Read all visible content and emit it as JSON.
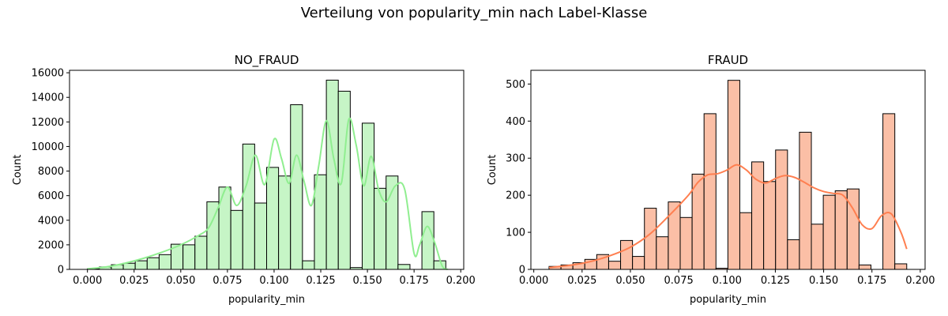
{
  "figure": {
    "suptitle": "Verteilung von popularity_min nach Label-Klasse"
  },
  "chart_data": [
    {
      "type": "bar",
      "title": "NO_FRAUD",
      "xlabel": "popularity_min",
      "ylabel": "Count",
      "xlim": [
        -0.0096,
        0.2016
      ],
      "ylim": [
        0,
        16200
      ],
      "xticks": [
        0.0,
        0.025,
        0.05,
        0.075,
        0.1,
        0.125,
        0.15,
        0.175,
        0.2
      ],
      "xtick_labels": [
        "0.000",
        "0.025",
        "0.050",
        "0.075",
        "0.100",
        "0.125",
        "0.150",
        "0.175",
        "0.200"
      ],
      "yticks": [
        0,
        2000,
        4000,
        6000,
        8000,
        10000,
        12000,
        14000,
        16000
      ],
      "ytick_labels": [
        "0",
        "2000",
        "4000",
        "6000",
        "8000",
        "10000",
        "12000",
        "14000",
        "16000"
      ],
      "bin_start": 0.0,
      "bin_width": 0.0064,
      "values": [
        50,
        200,
        380,
        500,
        700,
        950,
        1200,
        2050,
        2000,
        2700,
        5500,
        6700,
        4800,
        10200,
        5400,
        8300,
        7600,
        13400,
        700,
        7700,
        15400,
        14500,
        150,
        11900,
        6600,
        7600,
        400,
        0,
        4700,
        700
      ],
      "kde": {
        "x": [
          0.0,
          0.01,
          0.02,
          0.03,
          0.04,
          0.05,
          0.06,
          0.065,
          0.07,
          0.075,
          0.08,
          0.085,
          0.09,
          0.095,
          0.1,
          0.104,
          0.108,
          0.112,
          0.116,
          0.12,
          0.124,
          0.128,
          0.132,
          0.136,
          0.14,
          0.144,
          0.148,
          0.152,
          0.156,
          0.16,
          0.165,
          0.17,
          0.175,
          0.178,
          0.182,
          0.186,
          0.19,
          0.193
        ],
        "y": [
          50,
          200,
          500,
          900,
          1400,
          2000,
          2800,
          3400,
          5000,
          6700,
          5200,
          6800,
          9300,
          6900,
          10600,
          9000,
          7000,
          9300,
          7200,
          5200,
          8500,
          12100,
          9000,
          7000,
          12200,
          10100,
          6800,
          9200,
          6500,
          5500,
          6800,
          6500,
          1300,
          2000,
          3500,
          2200,
          300,
          0
        ]
      },
      "color": "#90ee90",
      "bar_fill": "#c6f5c6"
    },
    {
      "type": "bar",
      "title": "FRAUD",
      "xlabel": "popularity_min",
      "ylabel": "Count",
      "xlim": [
        -0.0015,
        0.2025
      ],
      "ylim": [
        0,
        537
      ],
      "xticks": [
        0.0,
        0.025,
        0.05,
        0.075,
        0.1,
        0.125,
        0.15,
        0.175,
        0.2
      ],
      "xtick_labels": [
        "0.000",
        "0.025",
        "0.050",
        "0.075",
        "0.100",
        "0.125",
        "0.150",
        "0.175",
        "0.200"
      ],
      "yticks": [
        0,
        100,
        200,
        300,
        400,
        500
      ],
      "ytick_labels": [
        "0",
        "100",
        "200",
        "300",
        "400",
        "500"
      ],
      "bin_start": 0.0079,
      "bin_width": 0.00617,
      "values": [
        8,
        12,
        18,
        27,
        40,
        22,
        78,
        35,
        165,
        88,
        182,
        140,
        257,
        420,
        3,
        510,
        153,
        290,
        237,
        322,
        80,
        370,
        122,
        200,
        212,
        217,
        12,
        0,
        420,
        15
      ],
      "kde": {
        "x": [
          0.0079,
          0.02,
          0.03,
          0.04,
          0.05,
          0.06,
          0.07,
          0.08,
          0.085,
          0.09,
          0.095,
          0.1,
          0.105,
          0.11,
          0.115,
          0.12,
          0.125,
          0.13,
          0.135,
          0.14,
          0.145,
          0.15,
          0.155,
          0.16,
          0.165,
          0.17,
          0.175,
          0.18,
          0.185,
          0.19,
          0.193
        ],
        "y": [
          5,
          12,
          22,
          38,
          60,
          95,
          145,
          200,
          235,
          255,
          258,
          268,
          282,
          268,
          243,
          233,
          245,
          253,
          248,
          235,
          220,
          210,
          205,
          200,
          165,
          120,
          110,
          145,
          150,
          100,
          55
        ]
      },
      "color": "#ff7f50",
      "bar_fill": "#fbbfa6"
    }
  ]
}
